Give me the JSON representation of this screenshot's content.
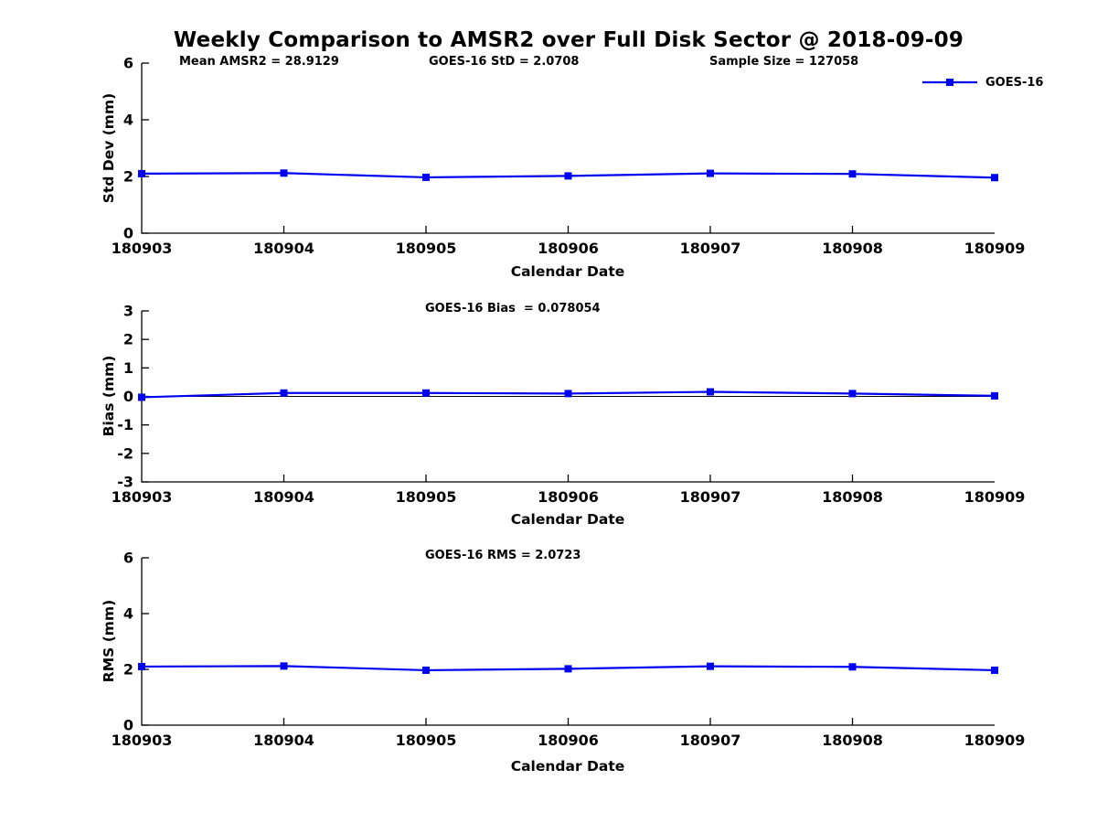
{
  "title": "Weekly Comparison to AMSR2 over Full Disk Sector @ 2018-09-09",
  "colors": {
    "series_line": "#0000F0",
    "axis": "#000000",
    "text": "#000000",
    "zero_line": "#000000"
  },
  "legend": {
    "label": "GOES-16",
    "position": "top-right",
    "marker": "filled-square"
  },
  "chart_data": [
    {
      "type": "line",
      "panel": "std-dev",
      "ylabel": "Std Dev (mm)",
      "xlabel": "Calendar Date",
      "categories": [
        "180903",
        "180904",
        "180905",
        "180906",
        "180907",
        "180908",
        "180909"
      ],
      "series": [
        {
          "name": "GOES-16",
          "values": [
            2.1,
            2.12,
            1.97,
            2.02,
            2.11,
            2.09,
            1.96
          ]
        }
      ],
      "ylim": [
        0,
        6
      ],
      "yticks": [
        0,
        2,
        4,
        6
      ],
      "grid": false,
      "zero_line": false,
      "annotations": [
        {
          "text": "Mean AMSR2 = 28.9129"
        },
        {
          "text": "GOES-16 StD = 2.0708"
        },
        {
          "text": "Sample Size = 127058"
        }
      ]
    },
    {
      "type": "line",
      "panel": "bias",
      "ylabel": "Bias (mm)",
      "xlabel": "Calendar Date",
      "categories": [
        "180903",
        "180904",
        "180905",
        "180906",
        "180907",
        "180908",
        "180909"
      ],
      "series": [
        {
          "name": "GOES-16",
          "values": [
            -0.03,
            0.12,
            0.12,
            0.1,
            0.16,
            0.1,
            0.02
          ]
        }
      ],
      "ylim": [
        -3,
        3
      ],
      "yticks": [
        -3,
        -2,
        -1,
        0,
        1,
        2,
        3
      ],
      "grid": false,
      "zero_line": true,
      "annotations": [
        {
          "text": "GOES-16 Bias  = 0.078054"
        }
      ]
    },
    {
      "type": "line",
      "panel": "rms",
      "ylabel": "RMS (mm)",
      "xlabel": "Calendar Date",
      "categories": [
        "180903",
        "180904",
        "180905",
        "180906",
        "180907",
        "180908",
        "180909"
      ],
      "series": [
        {
          "name": "GOES-16",
          "values": [
            2.1,
            2.12,
            1.97,
            2.02,
            2.11,
            2.09,
            1.97
          ]
        }
      ],
      "ylim": [
        0,
        6
      ],
      "yticks": [
        0,
        2,
        4,
        6
      ],
      "grid": false,
      "zero_line": false,
      "annotations": [
        {
          "text": "GOES-16 RMS = 2.0723"
        }
      ]
    }
  ]
}
